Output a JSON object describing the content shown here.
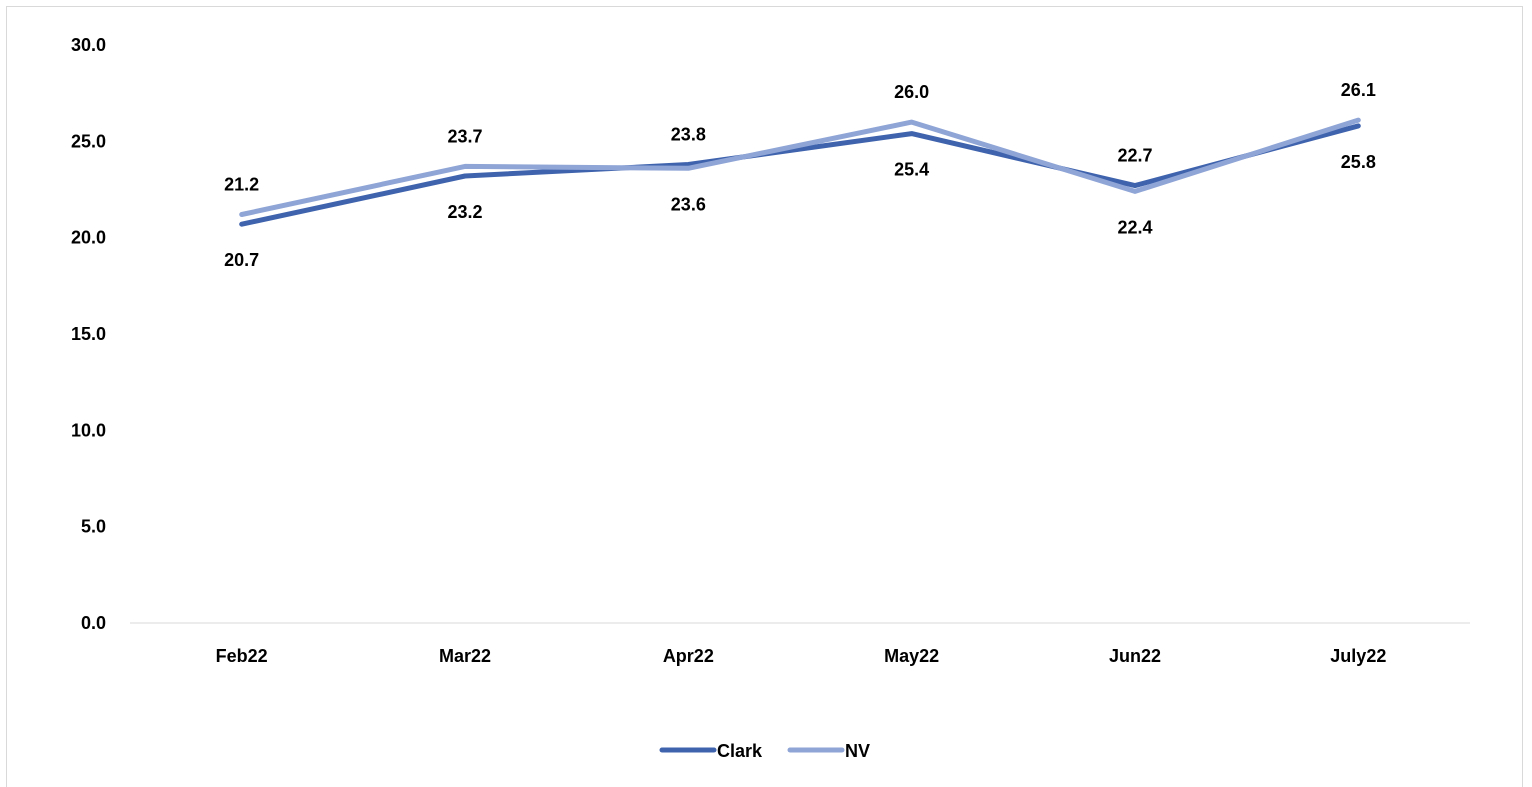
{
  "chart_data": {
    "type": "line",
    "title": "",
    "xlabel": "",
    "ylabel": "",
    "categories": [
      "Feb22",
      "Mar22",
      "Apr22",
      "May22",
      "Jun22",
      "July22"
    ],
    "ylim": [
      0,
      30
    ],
    "y_ticks": [
      "0.0",
      "5.0",
      "10.0",
      "15.0",
      "20.0",
      "25.0",
      "30.0"
    ],
    "grid": false,
    "legend_position": "bottom",
    "series": [
      {
        "name": "Clark",
        "color": "#3f63ad",
        "values": [
          20.7,
          23.2,
          23.8,
          25.4,
          22.7,
          25.8
        ],
        "labels": [
          "20.7",
          "23.2",
          "23.8",
          "25.4",
          "22.7",
          "25.8"
        ]
      },
      {
        "name": "NV",
        "color": "#8fa5d6",
        "values": [
          21.2,
          23.7,
          23.6,
          26.0,
          22.4,
          26.1
        ],
        "labels": [
          "21.2",
          "23.7",
          "23.6",
          "26.0",
          "22.4",
          "26.1"
        ]
      }
    ]
  }
}
